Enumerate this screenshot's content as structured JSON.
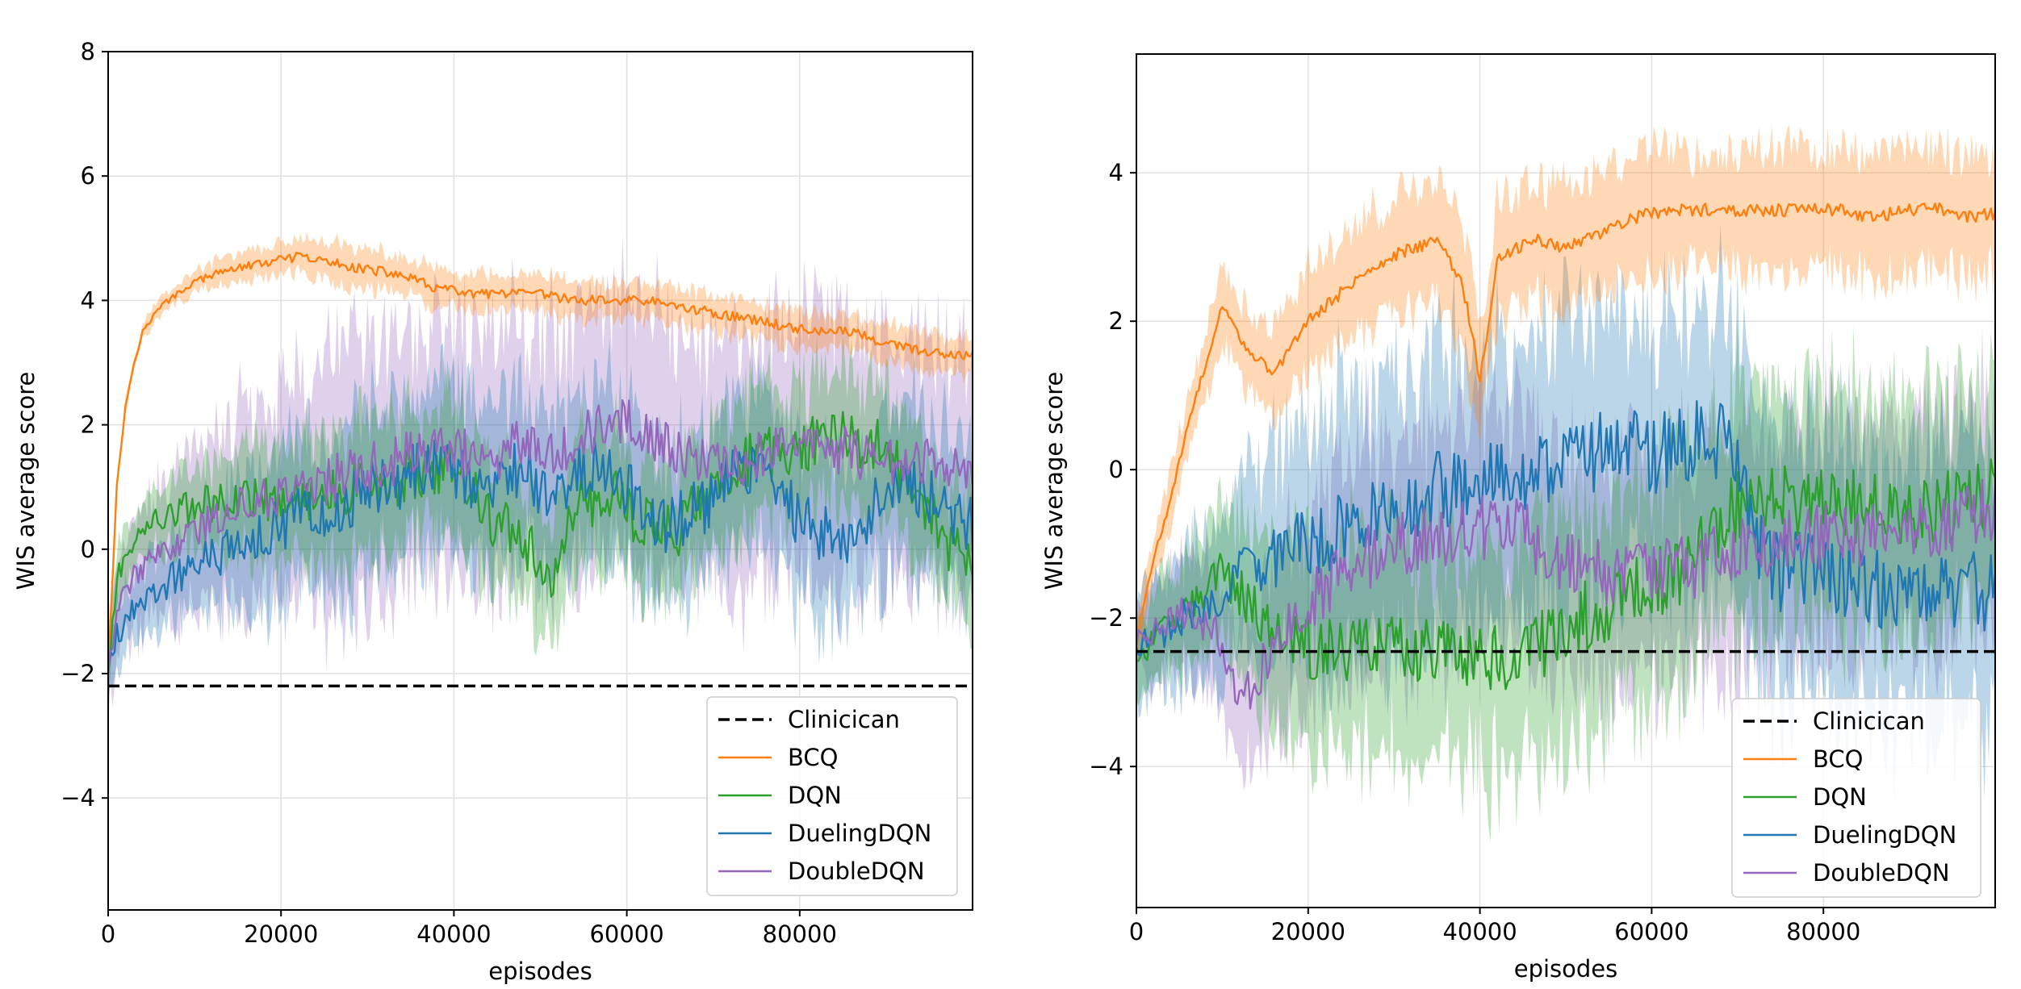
{
  "colors": {
    "clinician": "#000000",
    "BCQ": "#ff7f0e",
    "DQN": "#2ca02c",
    "DuelingDQN": "#1f77b4",
    "DoubleDQN": "#9467bd",
    "grid": "#e0e0e0"
  },
  "legend_entries": [
    "Clinicican",
    "BCQ",
    "DQN",
    "DuelingDQN",
    "DoubleDQN"
  ],
  "chart_data": [
    {
      "type": "line",
      "xlabel": "episodes",
      "ylabel": "WIS average score",
      "xlim": [
        0,
        100000
      ],
      "ylim": [
        -5.8,
        8.0
      ],
      "xticks": [
        0,
        20000,
        40000,
        60000,
        80000
      ],
      "xtick_labels": [
        "0",
        "20000",
        "40000",
        "60000",
        "80000"
      ],
      "yticks": [
        -4,
        -2,
        0,
        2,
        4,
        6,
        8
      ],
      "ytick_labels": [
        "−4",
        "−2",
        "0",
        "2",
        "4",
        "6",
        "8"
      ],
      "grid": true,
      "legend_position": "lower-right",
      "clinician_baseline": -2.2,
      "series": [
        {
          "name": "BCQ",
          "color": "#ff7f0e",
          "x": [
            0,
            1000,
            2000,
            3000,
            4000,
            6000,
            8000,
            10000,
            14000,
            18000,
            22000,
            26000,
            30000,
            34000,
            38000,
            42000,
            46000,
            50000,
            54000,
            58000,
            62000,
            66000,
            70000,
            74000,
            78000,
            82000,
            86000,
            90000,
            94000,
            97000,
            100000
          ],
          "mean": [
            -1.9,
            1.0,
            2.3,
            3.0,
            3.5,
            3.9,
            4.1,
            4.3,
            4.5,
            4.6,
            4.7,
            4.6,
            4.5,
            4.4,
            4.2,
            4.1,
            4.1,
            4.1,
            4.0,
            4.0,
            4.0,
            3.9,
            3.8,
            3.7,
            3.6,
            3.5,
            3.5,
            3.3,
            3.2,
            3.1,
            3.1
          ],
          "band": 0.3
        },
        {
          "name": "DQN",
          "color": "#2ca02c",
          "x": [
            0,
            1000,
            3000,
            6000,
            10000,
            15000,
            20000,
            25000,
            30000,
            35000,
            40000,
            44000,
            48000,
            51000,
            54000,
            58000,
            62000,
            66000,
            70000,
            74000,
            78000,
            82000,
            86000,
            90000,
            94000,
            97000,
            100000
          ],
          "mean": [
            -1.9,
            -0.5,
            0.2,
            0.5,
            0.7,
            0.8,
            0.8,
            0.9,
            1.0,
            1.2,
            1.4,
            0.5,
            0.2,
            -0.6,
            0.7,
            0.9,
            0.4,
            0.3,
            1.0,
            1.4,
            1.6,
            1.7,
            1.8,
            1.6,
            0.8,
            0.1,
            0.0
          ],
          "band": 1.0
        },
        {
          "name": "DuelingDQN",
          "color": "#1f77b4",
          "x": [
            0,
            1000,
            3000,
            6000,
            10000,
            15000,
            20000,
            25000,
            30000,
            35000,
            40000,
            44000,
            48000,
            52000,
            56000,
            60000,
            64000,
            68000,
            72000,
            76000,
            80000,
            84000,
            88000,
            92000,
            96000,
            100000
          ],
          "mean": [
            -1.9,
            -1.4,
            -0.9,
            -0.6,
            -0.3,
            0.1,
            0.4,
            0.7,
            0.9,
            1.2,
            1.3,
            0.9,
            1.3,
            0.8,
            1.4,
            1.0,
            0.3,
            0.6,
            1.2,
            1.2,
            0.5,
            0.1,
            0.6,
            1.0,
            0.7,
            0.4
          ],
          "band": 1.3
        },
        {
          "name": "DoubleDQN",
          "color": "#9467bd",
          "x": [
            0,
            1000,
            3000,
            6000,
            10000,
            15000,
            20000,
            25000,
            30000,
            35000,
            40000,
            44000,
            48000,
            52000,
            56000,
            60000,
            64000,
            68000,
            72000,
            76000,
            80000,
            84000,
            88000,
            92000,
            96000,
            100000
          ],
          "mean": [
            -1.9,
            -1.0,
            -0.4,
            -0.1,
            0.3,
            0.7,
            0.9,
            1.1,
            1.3,
            1.5,
            1.6,
            1.4,
            1.8,
            1.6,
            1.9,
            2.1,
            1.7,
            1.4,
            1.3,
            1.6,
            1.7,
            1.6,
            1.5,
            1.4,
            1.4,
            1.3
          ],
          "band": 2.0
        }
      ]
    },
    {
      "type": "line",
      "xlabel": "episodes",
      "ylabel": "WIS average score",
      "xlim": [
        0,
        100000
      ],
      "ylim": [
        -5.9,
        5.6
      ],
      "xticks": [
        0,
        20000,
        40000,
        60000,
        80000
      ],
      "xtick_labels": [
        "0",
        "20000",
        "40000",
        "60000",
        "80000"
      ],
      "yticks": [
        -4,
        -2,
        0,
        2,
        4
      ],
      "ytick_labels": [
        "−4",
        "−2",
        "0",
        "2",
        "4"
      ],
      "grid": true,
      "legend_position": "lower-right",
      "clinician_baseline": -2.45,
      "series": [
        {
          "name": "BCQ",
          "color": "#ff7f0e",
          "x": [
            0,
            2000,
            4000,
            6000,
            8000,
            10000,
            13000,
            16000,
            20000,
            25000,
            30000,
            35000,
            38000,
            40000,
            42000,
            46000,
            50000,
            54000,
            58000,
            62000,
            66000,
            70000,
            74000,
            78000,
            82000,
            86000,
            90000,
            94000,
            97000,
            100000
          ],
          "mean": [
            -2.3,
            -1.2,
            -0.4,
            0.6,
            1.4,
            2.2,
            1.6,
            1.3,
            2.0,
            2.5,
            2.9,
            3.1,
            2.5,
            1.2,
            2.8,
            3.1,
            3.0,
            3.2,
            3.4,
            3.5,
            3.5,
            3.5,
            3.5,
            3.5,
            3.5,
            3.4,
            3.5,
            3.5,
            3.4,
            3.45
          ],
          "band": 0.8
        },
        {
          "name": "DQN",
          "color": "#2ca02c",
          "x": [
            0,
            3000,
            6000,
            10000,
            15000,
            20000,
            25000,
            30000,
            35000,
            40000,
            45000,
            50000,
            55000,
            60000,
            65000,
            70000,
            75000,
            80000,
            85000,
            90000,
            95000,
            100000
          ],
          "mean": [
            -2.5,
            -2.2,
            -1.8,
            -1.4,
            -2.0,
            -2.4,
            -2.5,
            -2.4,
            -2.4,
            -2.5,
            -2.6,
            -2.1,
            -1.8,
            -1.6,
            -1.2,
            -0.5,
            -0.4,
            -0.5,
            -0.5,
            -0.6,
            -0.5,
            -0.3
          ],
          "band": 1.5
        },
        {
          "name": "DuelingDQN",
          "color": "#1f77b4",
          "x": [
            0,
            3000,
            6000,
            10000,
            15000,
            20000,
            25000,
            30000,
            35000,
            40000,
            45000,
            50000,
            55000,
            60000,
            65000,
            70000,
            72000,
            75000,
            80000,
            85000,
            90000,
            95000,
            100000
          ],
          "mean": [
            -2.3,
            -2.2,
            -1.9,
            -1.6,
            -1.2,
            -1.0,
            -0.7,
            -0.5,
            -0.3,
            -0.2,
            -0.1,
            0.1,
            0.3,
            0.2,
            0.4,
            0.3,
            -1.0,
            -1.4,
            -1.3,
            -1.6,
            -1.7,
            -1.6,
            -1.7
          ],
          "band": 1.8
        },
        {
          "name": "DoubleDQN",
          "color": "#9467bd",
          "x": [
            0,
            3000,
            6000,
            10000,
            12000,
            15000,
            20000,
            25000,
            30000,
            35000,
            40000,
            45000,
            47000,
            50000,
            55000,
            60000,
            65000,
            70000,
            75000,
            80000,
            85000,
            90000,
            95000,
            100000
          ],
          "mean": [
            -2.3,
            -2.1,
            -1.9,
            -2.3,
            -3.2,
            -2.6,
            -1.8,
            -1.3,
            -1.0,
            -0.9,
            -0.8,
            -0.7,
            -1.2,
            -1.3,
            -1.4,
            -1.4,
            -1.3,
            -1.1,
            -1.0,
            -0.9,
            -0.9,
            -0.8,
            -0.7,
            -0.5
          ],
          "band": 1.5
        }
      ]
    }
  ]
}
